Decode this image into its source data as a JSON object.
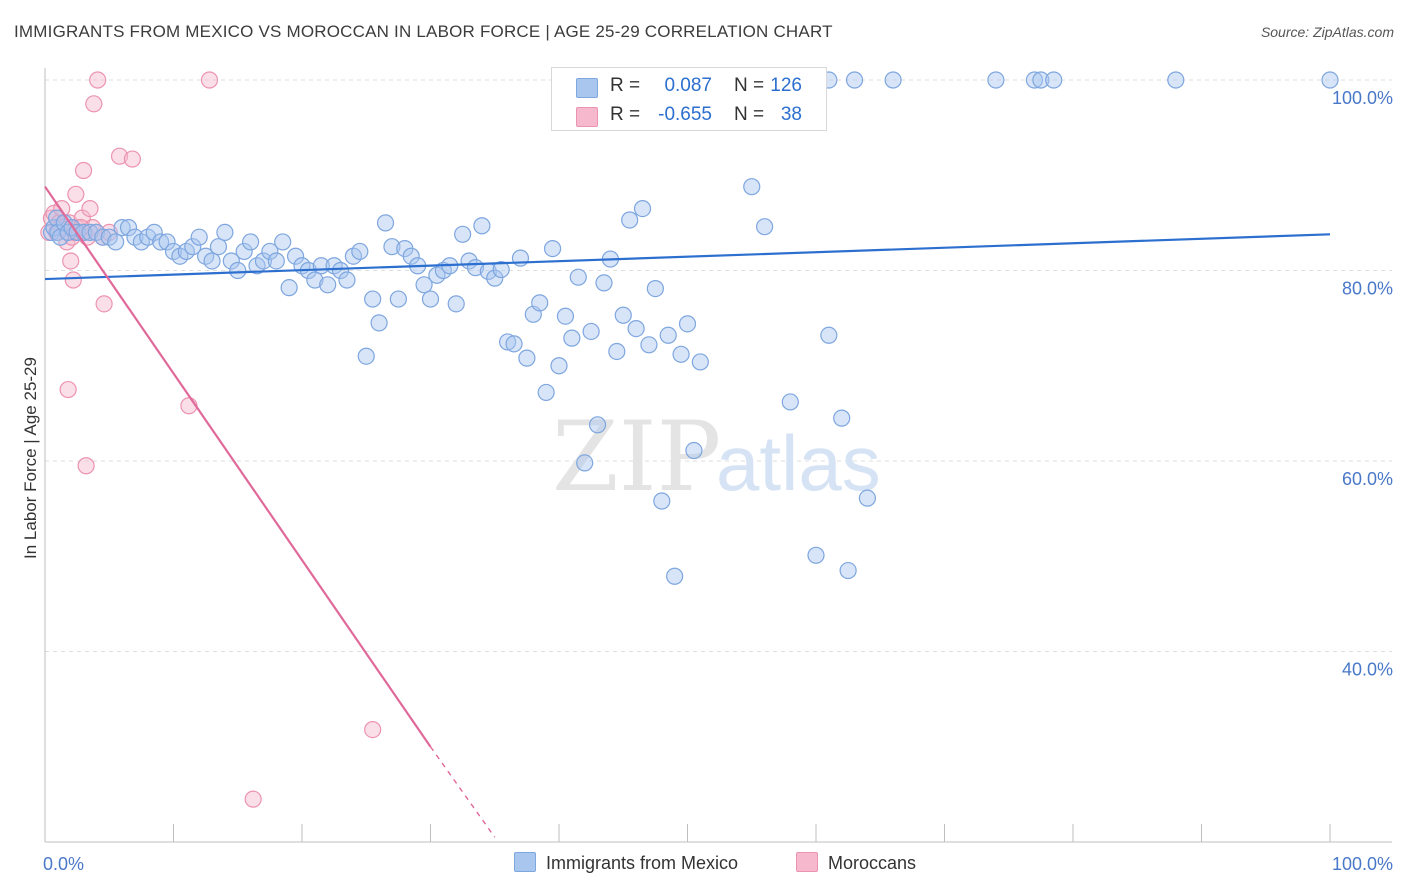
{
  "title": "IMMIGRANTS FROM MEXICO VS MOROCCAN IN LABOR FORCE | AGE 25-29 CORRELATION CHART",
  "source": "Source: ZipAtlas.com",
  "watermark": {
    "zip": "ZIP",
    "atlas": "atlas"
  },
  "colors": {
    "blue_fill": "#a9c6ef",
    "blue_stroke": "#7ea6df",
    "blue_line": "#2c6fcf",
    "pink_fill": "#f5b8cc",
    "pink_stroke": "#ec93b0",
    "pink_line": "#e0699a",
    "axis_text": "#4a78c8",
    "grid": "#dedede"
  },
  "legend": [
    {
      "r_label": "R =",
      "r_value": "0.087",
      "n_label": "N =",
      "n_value": "126"
    },
    {
      "r_label": "R =",
      "r_value": "-0.655",
      "n_label": "N =",
      "n_value": "38"
    }
  ],
  "bottom_legend": {
    "series1": "Immigrants from Mexico",
    "series2": "Moroccans"
  },
  "chart_data": {
    "type": "scatter",
    "title": "IMMIGRANTS FROM MEXICO VS MOROCCAN IN LABOR FORCE | AGE 25-29 CORRELATION CHART",
    "xlabel": "",
    "ylabel": "In Labor Force | Age 25-29",
    "xlim": [
      0,
      100
    ],
    "ylim": [
      20,
      100
    ],
    "x_tick_labels": [
      "0.0%",
      "100.0%"
    ],
    "y_ticks": [
      40,
      60,
      80,
      100
    ],
    "y_tick_labels": [
      "40.0%",
      "60.0%",
      "80.0%",
      "100.0%"
    ],
    "grid": true,
    "series": [
      {
        "name": "Immigrants from Mexico",
        "color": "#a9c6ef",
        "trend": {
          "x": [
            0,
            100
          ],
          "y": [
            79.1,
            83.8
          ]
        },
        "points": [
          [
            0.5,
            84
          ],
          [
            0.7,
            84.5
          ],
          [
            0.9,
            85.5
          ],
          [
            1.0,
            84
          ],
          [
            1.2,
            83.5
          ],
          [
            1.5,
            85
          ],
          [
            1.8,
            84
          ],
          [
            2.1,
            84.5
          ],
          [
            2.5,
            84
          ],
          [
            3.0,
            84
          ],
          [
            3.5,
            84
          ],
          [
            4.0,
            84
          ],
          [
            4.5,
            83.5
          ],
          [
            5.0,
            83.5
          ],
          [
            5.5,
            83
          ],
          [
            6.0,
            84.5
          ],
          [
            6.5,
            84.5
          ],
          [
            7.0,
            83.5
          ],
          [
            7.5,
            83
          ],
          [
            8.0,
            83.5
          ],
          [
            8.5,
            84
          ],
          [
            9.0,
            83
          ],
          [
            9.5,
            83
          ],
          [
            10.0,
            82
          ],
          [
            10.5,
            81.5
          ],
          [
            11.0,
            82
          ],
          [
            11.5,
            82.5
          ],
          [
            12.0,
            83.5
          ],
          [
            12.5,
            81.5
          ],
          [
            13.0,
            81
          ],
          [
            13.5,
            82.5
          ],
          [
            14.0,
            84
          ],
          [
            14.5,
            81
          ],
          [
            15.0,
            80
          ],
          [
            15.5,
            82
          ],
          [
            16.0,
            83
          ],
          [
            16.5,
            80.5
          ],
          [
            17.0,
            81
          ],
          [
            17.5,
            82
          ],
          [
            18.0,
            81
          ],
          [
            18.5,
            83
          ],
          [
            19.0,
            78.2
          ],
          [
            19.5,
            81.5
          ],
          [
            20.0,
            80.5
          ],
          [
            20.5,
            80
          ],
          [
            21.0,
            79
          ],
          [
            21.5,
            80.5
          ],
          [
            22.0,
            78.5
          ],
          [
            22.5,
            80.5
          ],
          [
            23.0,
            80
          ],
          [
            23.5,
            79
          ],
          [
            24.0,
            81.5
          ],
          [
            24.5,
            82
          ],
          [
            25.0,
            71
          ],
          [
            25.5,
            77
          ],
          [
            26.0,
            74.5
          ],
          [
            26.5,
            85
          ],
          [
            27.0,
            82.5
          ],
          [
            27.5,
            77
          ],
          [
            28.0,
            82.3
          ],
          [
            28.5,
            81.5
          ],
          [
            29.0,
            80.5
          ],
          [
            29.5,
            78.5
          ],
          [
            30.0,
            77
          ],
          [
            30.5,
            79.5
          ],
          [
            31.0,
            80
          ],
          [
            31.5,
            80.5
          ],
          [
            32.0,
            76.5
          ],
          [
            32.5,
            83.8
          ],
          [
            33.0,
            81
          ],
          [
            33.5,
            80.3
          ],
          [
            34.0,
            84.7
          ],
          [
            34.5,
            79.9
          ],
          [
            35.0,
            79.2
          ],
          [
            35.5,
            80.1
          ],
          [
            36.0,
            72.5
          ],
          [
            36.5,
            72.3
          ],
          [
            37.0,
            81.3
          ],
          [
            37.5,
            70.8
          ],
          [
            38.0,
            75.4
          ],
          [
            38.5,
            76.6
          ],
          [
            39.0,
            67.2
          ],
          [
            39.5,
            82.3
          ],
          [
            40.0,
            70
          ],
          [
            40.5,
            75.2
          ],
          [
            41.0,
            72.9
          ],
          [
            41.5,
            79.3
          ],
          [
            42.0,
            59.8
          ],
          [
            42.5,
            73.6
          ],
          [
            43.0,
            63.8
          ],
          [
            43.5,
            78.7
          ],
          [
            44.0,
            81.2
          ],
          [
            44.5,
            71.5
          ],
          [
            45.0,
            75.3
          ],
          [
            45.5,
            85.3
          ],
          [
            46.0,
            73.9
          ],
          [
            46.5,
            86.5
          ],
          [
            47.0,
            72.2
          ],
          [
            47.5,
            78.1
          ],
          [
            48.0,
            55.8
          ],
          [
            48.5,
            73.2
          ],
          [
            49.0,
            47.9
          ],
          [
            49.5,
            71.2
          ],
          [
            50.0,
            74.4
          ],
          [
            50.5,
            61.1
          ],
          [
            51.0,
            70.4
          ],
          [
            55.0,
            88.8
          ],
          [
            56.0,
            84.6
          ],
          [
            58.0,
            66.2
          ],
          [
            60.0,
            50.1
          ],
          [
            61.0,
            73.2
          ],
          [
            62.0,
            64.5
          ],
          [
            62.5,
            48.5
          ],
          [
            64.0,
            56.1
          ],
          [
            56.5,
            100
          ],
          [
            53.0,
            100
          ],
          [
            54.0,
            100
          ],
          [
            57.0,
            100
          ],
          [
            61.0,
            100
          ],
          [
            63.0,
            100
          ],
          [
            66.0,
            100
          ],
          [
            74.0,
            100
          ],
          [
            77.0,
            100
          ],
          [
            77.5,
            100
          ],
          [
            78.5,
            100
          ],
          [
            88.0,
            100
          ],
          [
            100.0,
            100
          ]
        ]
      },
      {
        "name": "Moroccans",
        "color": "#f5b8cc",
        "trend": {
          "x": [
            0,
            30
          ],
          "y": [
            88.8,
            30.0
          ],
          "dash_to": [
            35,
            20.5
          ]
        },
        "points": [
          [
            0.3,
            84
          ],
          [
            0.5,
            85.5
          ],
          [
            0.7,
            86
          ],
          [
            0.9,
            84
          ],
          [
            1.1,
            85
          ],
          [
            1.3,
            86.5
          ],
          [
            1.5,
            84.5
          ],
          [
            1.7,
            83
          ],
          [
            1.9,
            85
          ],
          [
            2.1,
            83.5
          ],
          [
            2.3,
            84
          ],
          [
            2.5,
            84.5
          ],
          [
            2.7,
            84
          ],
          [
            2.9,
            85.5
          ],
          [
            3.1,
            84
          ],
          [
            3.3,
            83.5
          ],
          [
            3.5,
            86.5
          ],
          [
            3.7,
            84.5
          ],
          [
            4.0,
            84
          ],
          [
            4.5,
            83.5
          ],
          [
            5.0,
            84
          ],
          [
            2.0,
            81
          ],
          [
            2.2,
            79
          ],
          [
            1.8,
            67.5
          ],
          [
            3.2,
            59.5
          ],
          [
            4.6,
            76.5
          ],
          [
            5.8,
            92
          ],
          [
            6.8,
            91.7
          ],
          [
            3.0,
            90.5
          ],
          [
            2.4,
            88
          ],
          [
            3.8,
            97.5
          ],
          [
            4.1,
            100
          ],
          [
            12.8,
            100
          ],
          [
            11.2,
            65.8
          ],
          [
            25.5,
            31.8
          ],
          [
            16.2,
            24.5
          ],
          [
            2.8,
            84.5
          ],
          [
            1.2,
            84.5
          ]
        ]
      }
    ]
  }
}
